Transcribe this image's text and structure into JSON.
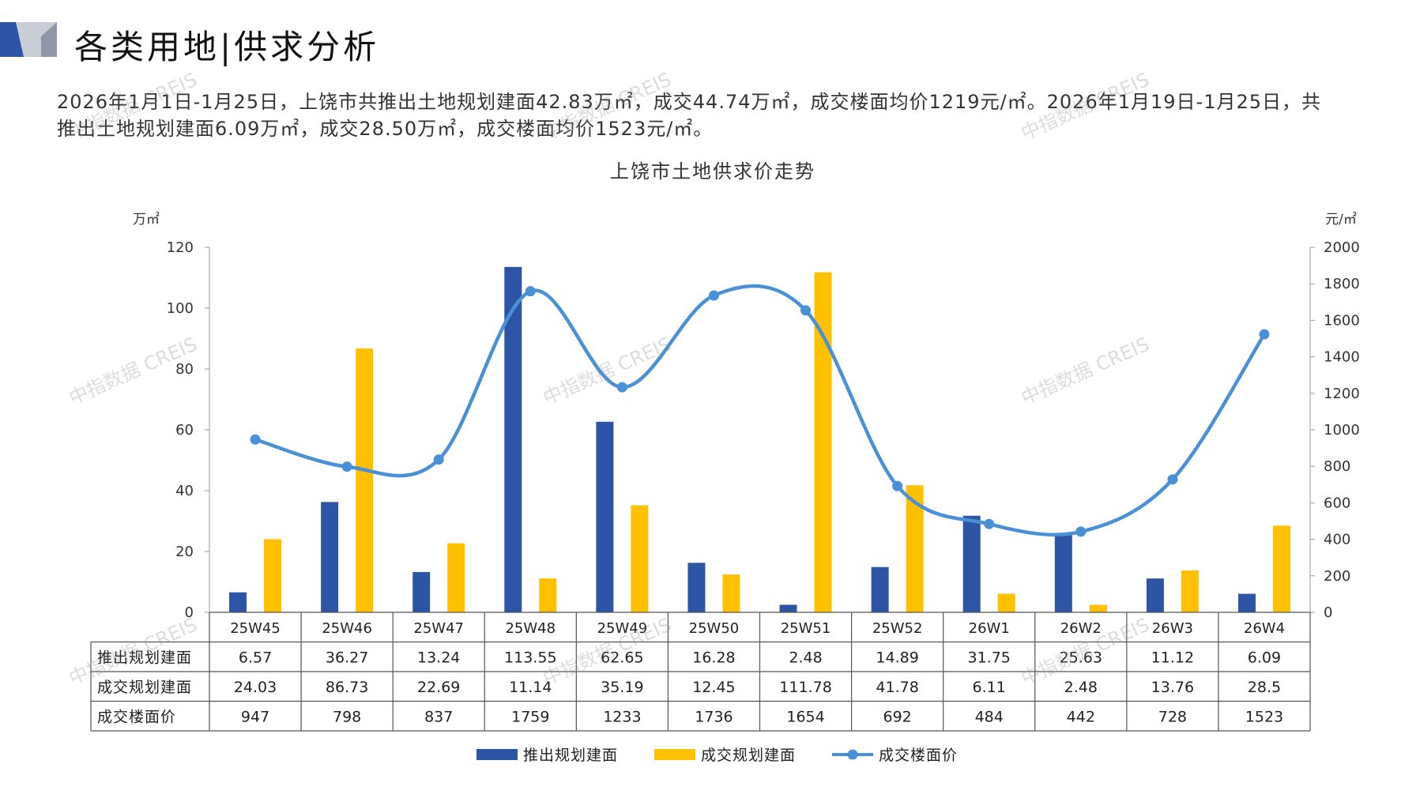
{
  "page": {
    "title": "各类用地|供求分析",
    "summary_line1": "2026年1月1日-1月25日，上饶市共推出土地规划建面42.83万㎡，成交44.74万㎡，成交楼面均价1219元/㎡。2026年1月19日-1月25日，共",
    "summary_line2": "推出土地规划建面6.09万㎡，成交28.50万㎡，成交楼面均价1523元/㎡。",
    "watermark": "中指数据 CREIS"
  },
  "colors": {
    "supply": "#2E54A5",
    "deal": "#FFC000",
    "price": "#4A90D6",
    "logo_dark": "#2E54A5",
    "logo_light": "#C9CDD6"
  },
  "chart_data": {
    "type": "bar",
    "title": "上饶市土地供求价走势",
    "y_left_unit": "万㎡",
    "y_right_unit": "元/㎡",
    "ylim_left": [
      0,
      120
    ],
    "ylim_right": [
      0,
      2000
    ],
    "yticks_left": [
      0,
      20,
      40,
      60,
      80,
      100,
      120
    ],
    "yticks_right": [
      0,
      200,
      400,
      600,
      800,
      1000,
      1200,
      1400,
      1600,
      1800,
      2000
    ],
    "categories": [
      "25W45",
      "25W46",
      "25W47",
      "25W48",
      "25W49",
      "25W50",
      "25W51",
      "25W52",
      "26W1",
      "26W2",
      "26W3",
      "26W4"
    ],
    "series": [
      {
        "name": "推出规划建面",
        "type": "bar",
        "axis": "left",
        "values": [
          6.57,
          36.27,
          13.24,
          113.55,
          62.65,
          16.28,
          2.48,
          14.89,
          31.75,
          25.63,
          11.12,
          6.09
        ],
        "display": [
          "6.57",
          "36.27",
          "13.24",
          "113.55",
          "62.65",
          "16.28",
          "2.48",
          "14.89",
          "31.75",
          "25.63",
          "11.12",
          "6.09"
        ]
      },
      {
        "name": "成交规划建面",
        "type": "bar",
        "axis": "left",
        "values": [
          24.03,
          86.73,
          22.69,
          11.14,
          35.19,
          12.45,
          111.78,
          41.78,
          6.11,
          2.48,
          13.76,
          28.5
        ],
        "display": [
          "24.03",
          "86.73",
          "22.69",
          "11.14",
          "35.19",
          "12.45",
          "111.78",
          "41.78",
          "6.11",
          "2.48",
          "13.76",
          "28.5"
        ]
      },
      {
        "name": "成交楼面价",
        "type": "line",
        "axis": "right",
        "values": [
          947,
          798,
          837,
          1759,
          1233,
          1736,
          1654,
          692,
          484,
          442,
          728,
          1523
        ],
        "display": [
          "947",
          "798",
          "837",
          "1759",
          "1233",
          "1736",
          "1654",
          "692",
          "484",
          "442",
          "728",
          "1523"
        ]
      }
    ],
    "legend_position": "bottom",
    "grid": false,
    "data_table": true
  }
}
